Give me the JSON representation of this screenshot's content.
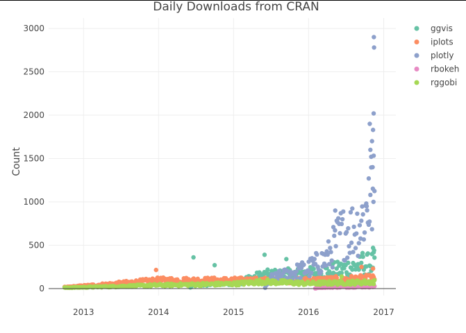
{
  "chart_data": {
    "type": "scatter",
    "title": "Daily Downloads from CRAN",
    "xlabel": "",
    "ylabel": "Count",
    "xlim": [
      "2012-07-15",
      "2017-03-01"
    ],
    "ylim": [
      -80,
      3120
    ],
    "x_ticks": [
      "2013",
      "2014",
      "2015",
      "2016",
      "2017"
    ],
    "x_tick_dates": [
      "2013-01-01",
      "2014-01-01",
      "2015-01-01",
      "2016-01-01",
      "2017-01-01"
    ],
    "y_ticks": [
      0,
      500,
      1000,
      1500,
      2000,
      2500,
      3000
    ],
    "grid": true,
    "legend": "top-right",
    "date_range": [
      "2012-10-01",
      "2016-11-20"
    ],
    "series": [
      {
        "name": "ggvis",
        "color": "#66c2a5",
        "trend": [
          [
            "2014-06-01",
            0
          ],
          [
            "2014-06-15",
            40
          ],
          [
            "2015-01-01",
            70
          ],
          [
            "2015-06-01",
            150
          ],
          [
            "2016-01-01",
            170
          ],
          [
            "2016-06-01",
            220
          ],
          [
            "2016-11-20",
            300
          ]
        ],
        "spread": 0.45,
        "highlights": [
          [
            "2014-06-20",
            360
          ],
          [
            "2014-10-01",
            270
          ],
          [
            "2015-06-01",
            390
          ],
          [
            "2015-09-15",
            340
          ],
          [
            "2016-09-20",
            410
          ],
          [
            "2016-11-10",
            470
          ],
          [
            "2016-11-15",
            440
          ]
        ]
      },
      {
        "name": "iplots",
        "color": "#fc8d62",
        "trend": [
          [
            "2012-10-01",
            15
          ],
          [
            "2013-06-01",
            55
          ],
          [
            "2014-01-01",
            95
          ],
          [
            "2015-01-01",
            95
          ],
          [
            "2016-01-01",
            95
          ],
          [
            "2016-11-20",
            120
          ]
        ],
        "spread": 0.35,
        "highlights": [
          [
            "2013-12-20",
            215
          ],
          [
            "2016-09-15",
            250
          ],
          [
            "2016-11-10",
            230
          ]
        ]
      },
      {
        "name": "plotly",
        "color": "#8da0cb",
        "trend": [
          [
            "2015-06-01",
            0
          ],
          [
            "2015-07-01",
            110
          ],
          [
            "2016-01-01",
            230
          ],
          [
            "2016-04-01",
            350
          ],
          [
            "2016-06-01",
            620
          ],
          [
            "2016-09-01",
            720
          ],
          [
            "2016-11-20",
            1100
          ]
        ],
        "spread": 0.5,
        "highlights": [
          [
            "2016-11-14",
            2900
          ],
          [
            "2016-11-15",
            2780
          ],
          [
            "2016-11-13",
            2020
          ],
          [
            "2016-10-25",
            1900
          ],
          [
            "2016-11-10",
            1830
          ],
          [
            "2016-11-05",
            1700
          ],
          [
            "2016-10-28",
            1600
          ],
          [
            "2016-11-01",
            1520
          ],
          [
            "2016-11-08",
            1400
          ],
          [
            "2016-10-20",
            1270
          ],
          [
            "2016-11-12",
            1000
          ],
          [
            "2016-10-10",
            950
          ],
          [
            "2016-05-10",
            900
          ]
        ]
      },
      {
        "name": "rbokeh",
        "color": "#e78ac3",
        "trend": [
          [
            "2016-02-01",
            0
          ],
          [
            "2016-02-15",
            15
          ],
          [
            "2016-11-20",
            25
          ]
        ],
        "spread": 0.4,
        "highlights": []
      },
      {
        "name": "rggobi",
        "color": "#a6d854",
        "trend": [
          [
            "2012-10-01",
            10
          ],
          [
            "2013-06-01",
            25
          ],
          [
            "2014-01-01",
            40
          ],
          [
            "2015-01-01",
            55
          ],
          [
            "2015-06-01",
            80
          ],
          [
            "2016-01-01",
            60
          ],
          [
            "2016-11-20",
            75
          ]
        ],
        "spread": 0.35,
        "highlights": [
          [
            "2016-06-10",
            140
          ]
        ]
      }
    ]
  }
}
